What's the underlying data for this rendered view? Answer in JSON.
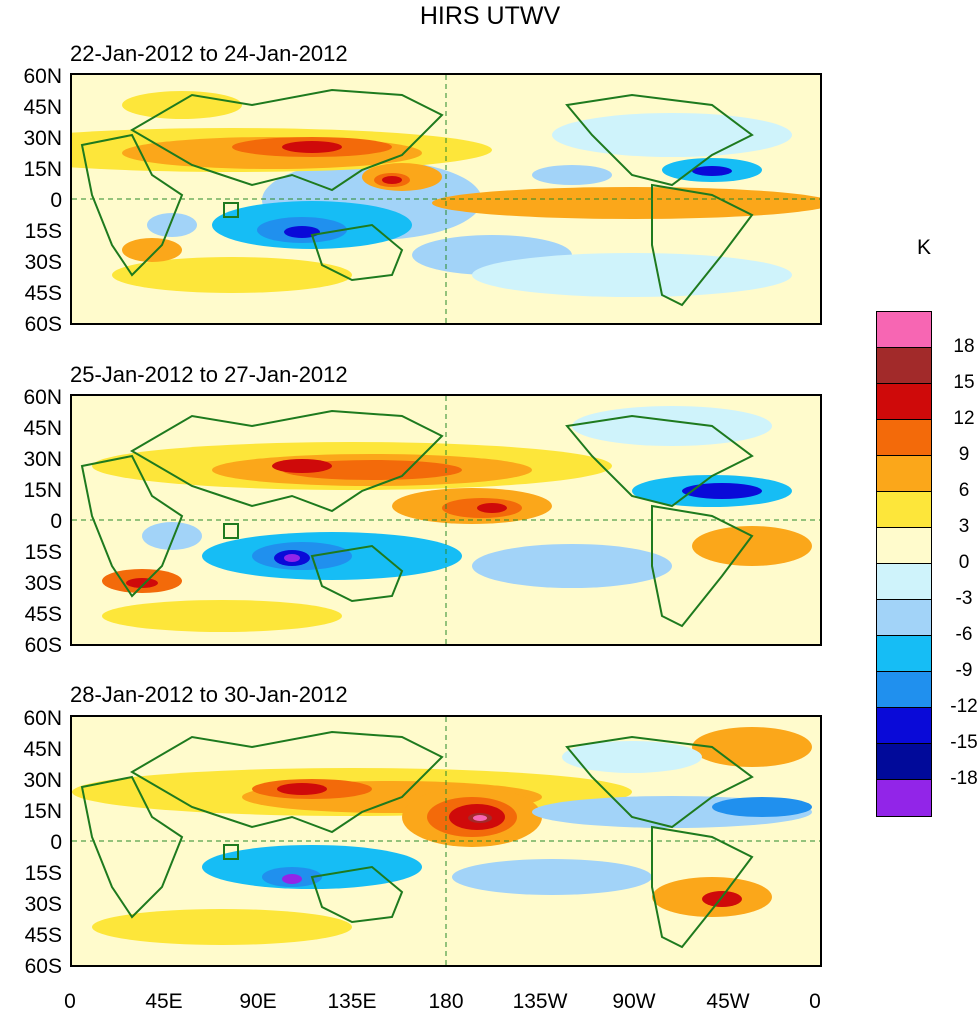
{
  "title": "HIRS UTWV",
  "panels": [
    {
      "date_range": "22-Jan-2012 to 24-Jan-2012"
    },
    {
      "date_range": "25-Jan-2012 to 27-Jan-2012"
    },
    {
      "date_range": "28-Jan-2012 to 30-Jan-2012"
    }
  ],
  "lat_labels": [
    "60N",
    "45N",
    "30N",
    "15N",
    "0",
    "15S",
    "30S",
    "45S",
    "60S"
  ],
  "lon_labels": [
    "0",
    "45E",
    "90E",
    "135E",
    "180",
    "135W",
    "90W",
    "45W",
    "0"
  ],
  "colorbar": {
    "unit": "K",
    "labels": [
      "18",
      "15",
      "12",
      "9",
      "6",
      "3",
      "0",
      "-3",
      "-6",
      "-9",
      "-12",
      "-15",
      "-18"
    ],
    "colors": [
      "#f766b3",
      "#a22a2a",
      "#cf0a0a",
      "#f36a0a",
      "#fba71a",
      "#fde63a",
      "#fffbcc",
      "#cff3fb",
      "#a2d3f8",
      "#16bdf5",
      "#2090ee",
      "#0a0ad8",
      "#010a9a",
      "#9225e8"
    ]
  },
  "map_colors": {
    "land_outline": "#1e7a1e",
    "reference_line": "#2a8a2a"
  }
}
